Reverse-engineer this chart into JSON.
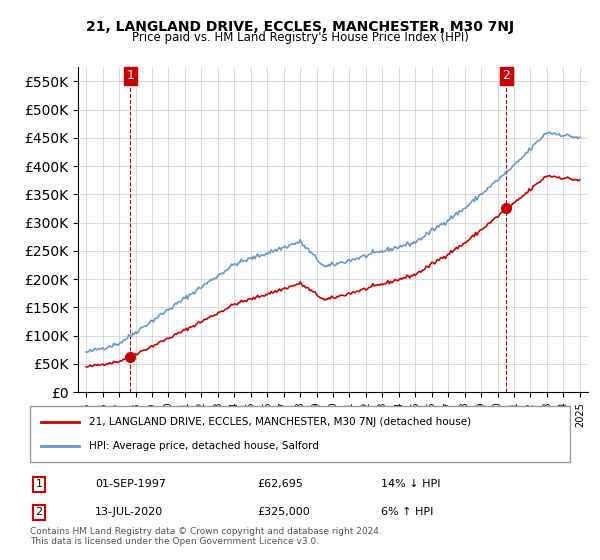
{
  "title": "21, LANGLAND DRIVE, ECCLES, MANCHESTER, M30 7NJ",
  "subtitle": "Price paid vs. HM Land Registry's House Price Index (HPI)",
  "legend_line1": "21, LANGLAND DRIVE, ECCLES, MANCHESTER, M30 7NJ (detached house)",
  "legend_line2": "HPI: Average price, detached house, Salford",
  "sale1_label": "1",
  "sale1_date": "01-SEP-1997",
  "sale1_price": "£62,695",
  "sale1_hpi": "14% ↓ HPI",
  "sale2_label": "2",
  "sale2_date": "13-JUL-2020",
  "sale2_price": "£325,000",
  "sale2_hpi": "6% ↑ HPI",
  "footer": "Contains HM Land Registry data © Crown copyright and database right 2024.\nThis data is licensed under the Open Government Licence v3.0.",
  "sale_color": "#cc0000",
  "hpi_color": "#6699cc",
  "vline_color": "#cc0000",
  "background_color": "#ffffff",
  "ylim": [
    0,
    575000
  ],
  "yticks": [
    0,
    50000,
    100000,
    150000,
    200000,
    250000,
    300000,
    350000,
    400000,
    450000,
    500000,
    550000
  ],
  "sale1_year": 1997.67,
  "sale1_value": 62695,
  "sale2_year": 2020.53,
  "sale2_value": 325000
}
